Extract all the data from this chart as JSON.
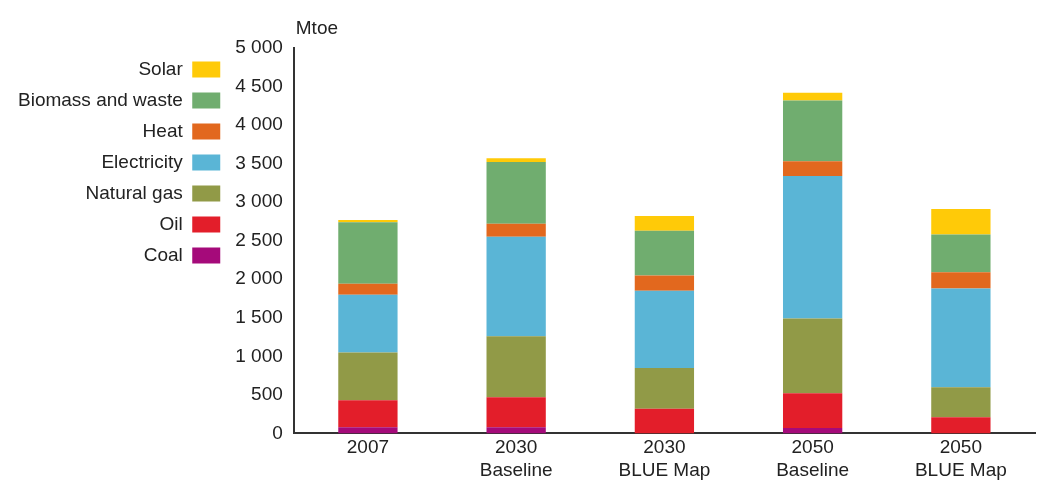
{
  "chart_data": {
    "type": "bar",
    "stacked": true,
    "ylabel": "Mtoe",
    "categories": [
      "2007",
      "2030 Baseline",
      "2030 BLUE Map",
      "2050 Baseline",
      "2050 BLUE Map"
    ],
    "series": [
      {
        "name": "Coal",
        "color": "#a50a7a",
        "values": [
          80,
          80,
          0,
          70,
          0
        ]
      },
      {
        "name": "Oil",
        "color": "#e31e2a",
        "values": [
          350,
          390,
          320,
          450,
          210
        ]
      },
      {
        "name": "Natural gas",
        "color": "#919a47",
        "values": [
          620,
          790,
          530,
          970,
          390
        ]
      },
      {
        "name": "Electricity",
        "color": "#5ab5d6",
        "values": [
          750,
          1290,
          1000,
          1850,
          1280
        ]
      },
      {
        "name": "Heat",
        "color": "#e2681e",
        "values": [
          140,
          170,
          200,
          190,
          210
        ]
      },
      {
        "name": "Biomass and waste",
        "color": "#70ad6f",
        "values": [
          800,
          800,
          580,
          790,
          490
        ]
      },
      {
        "name": "Solar",
        "color": "#ffca08",
        "values": [
          30,
          50,
          190,
          100,
          330
        ]
      }
    ],
    "ylim": [
      0,
      5000
    ],
    "yticks": [
      0,
      {
        "value": 500,
        "label": "500"
      },
      {
        "value": 1000,
        "label": "1 000"
      },
      {
        "value": 1500,
        "label": "1 500"
      },
      {
        "value": 2000,
        "label": "2 000"
      },
      {
        "value": 2500,
        "label": "2 500"
      },
      {
        "value": 3000,
        "label": "3 000"
      },
      {
        "value": 3500,
        "label": "3 500"
      },
      {
        "value": 4000,
        "label": "4 000"
      },
      {
        "value": 4500,
        "label": "4 500"
      },
      {
        "value": 5000,
        "label": "5 000"
      }
    ],
    "grid": false,
    "legend": "left"
  }
}
